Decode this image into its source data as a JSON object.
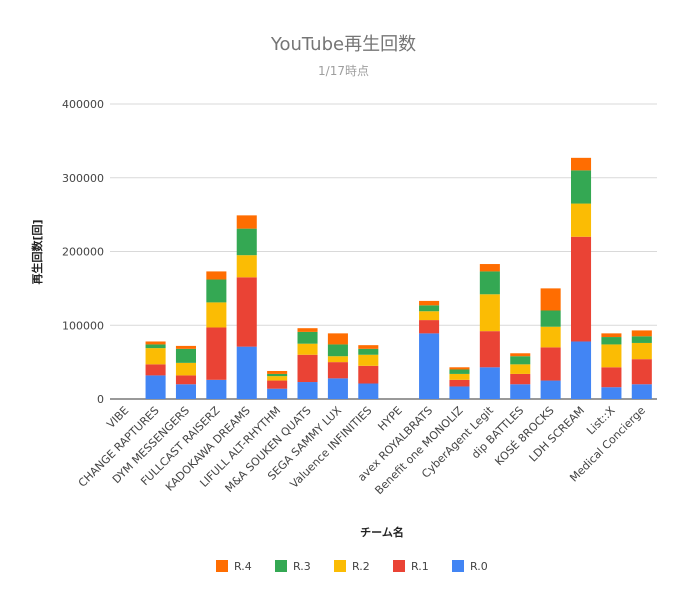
{
  "chart_data": {
    "type": "bar",
    "stacked": true,
    "title": "YouTube再生回数",
    "subtitle": "1/17時点",
    "xlabel": "チーム名",
    "ylabel": "再生回数[回]",
    "ylim": [
      0,
      400000
    ],
    "yticks": [
      0,
      100000,
      200000,
      300000,
      400000
    ],
    "grid": true,
    "legend_position": "bottom",
    "categories": [
      "VIBE",
      "CHANGE RAPTURES",
      "DYM MESSENGERS",
      "FULLCAST RAISERZ",
      "KADOKAWA DREAMS",
      "LIFULL ALT-RHYTHM",
      "M&A SOUKEN QUATS",
      "SEGA SAMMY LUX",
      "Valuence INFINITIES",
      "HYPE",
      "avex ROYALBRATS",
      "Benefit one MONOLIZ",
      "CyberAgent Legit",
      "dip BATTLES",
      "KOSÉ 8ROCKS",
      "LDH SCREAM",
      "List::X",
      "Medical Concierge"
    ],
    "series": [
      {
        "name": "R.0",
        "color": "#4285F4",
        "values": [
          0,
          32000,
          20000,
          26000,
          71000,
          14000,
          23000,
          28000,
          21000,
          0,
          89000,
          17000,
          43000,
          20000,
          25000,
          78000,
          16000,
          20000
        ]
      },
      {
        "name": "R.1",
        "color": "#EA4335",
        "values": [
          0,
          15000,
          12000,
          71000,
          94000,
          11000,
          37000,
          22000,
          24000,
          0,
          18000,
          9000,
          49000,
          14000,
          45000,
          142000,
          27000,
          34000
        ]
      },
      {
        "name": "R.2",
        "color": "#FBBC04",
        "values": [
          0,
          22000,
          17000,
          34000,
          30000,
          6000,
          15000,
          8000,
          15000,
          0,
          12000,
          8000,
          50000,
          13000,
          28000,
          45000,
          31000,
          22000
        ]
      },
      {
        "name": "R.3",
        "color": "#34A853",
        "values": [
          0,
          5000,
          19000,
          31000,
          36000,
          3000,
          16000,
          16000,
          8000,
          0,
          8000,
          6000,
          31000,
          11000,
          22000,
          45000,
          10000,
          9000
        ]
      },
      {
        "name": "R.4",
        "color": "#FF6D01",
        "values": [
          0,
          4000,
          4000,
          11000,
          18000,
          4000,
          5000,
          15000,
          5000,
          0,
          6000,
          3000,
          10000,
          4000,
          30000,
          17000,
          5000,
          8000
        ]
      }
    ],
    "legend_order": [
      "R.4",
      "R.3",
      "R.2",
      "R.1",
      "R.0"
    ]
  }
}
